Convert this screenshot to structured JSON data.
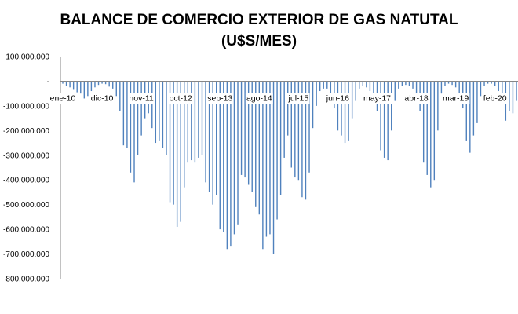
{
  "chart_data": {
    "type": "bar",
    "title": "BALANCE DE COMERCIO EXTERIOR DE GAS NATUTAL",
    "subtitle": "(U$S/MES)",
    "xlabel": "",
    "ylabel": "",
    "ylim": [
      -800000000,
      100000000
    ],
    "grid": false,
    "legend": "none",
    "bar_color": "#4f81bd",
    "y_tick_values": [
      100000000,
      0,
      -100000000,
      -200000000,
      -300000000,
      -400000000,
      -500000000,
      -600000000,
      -700000000,
      -800000000
    ],
    "y_tick_labels": [
      "100.000.000",
      "-",
      "-100.000.000",
      "-200.000.000",
      "-300.000.000",
      "-400.000.000",
      "-500.000.000",
      "-600.000.000",
      "-700.000.000",
      "-800.000.000"
    ],
    "x_tick_labels": [
      {
        "label": "ene-10",
        "index": 0
      },
      {
        "label": "dic-10",
        "index": 11
      },
      {
        "label": "nov-11",
        "index": 22
      },
      {
        "label": "oct-12",
        "index": 33
      },
      {
        "label": "sep-13",
        "index": 44
      },
      {
        "label": "ago-14",
        "index": 55
      },
      {
        "label": "jul-15",
        "index": 66
      },
      {
        "label": "jun-16",
        "index": 77
      },
      {
        "label": "may-17",
        "index": 88
      },
      {
        "label": "abr-18",
        "index": 99
      },
      {
        "label": "mar-19",
        "index": 110
      },
      {
        "label": "feb-20",
        "index": 121
      }
    ],
    "x_start": "ene-10",
    "values": [
      -10000000,
      -20000000,
      -25000000,
      -35000000,
      -45000000,
      -50000000,
      -70000000,
      -60000000,
      -40000000,
      -25000000,
      -15000000,
      -10000000,
      -12000000,
      -22000000,
      -30000000,
      -60000000,
      -120000000,
      -260000000,
      -270000000,
      -370000000,
      -410000000,
      -300000000,
      -220000000,
      -150000000,
      -130000000,
      -190000000,
      -250000000,
      -240000000,
      -270000000,
      -300000000,
      -490000000,
      -500000000,
      -590000000,
      -570000000,
      -430000000,
      -330000000,
      -320000000,
      -330000000,
      -310000000,
      -300000000,
      -410000000,
      -450000000,
      -500000000,
      -460000000,
      -600000000,
      -610000000,
      -680000000,
      -670000000,
      -620000000,
      -580000000,
      -380000000,
      -390000000,
      -420000000,
      -450000000,
      -510000000,
      -540000000,
      -680000000,
      -630000000,
      -620000000,
      -700000000,
      -560000000,
      -460000000,
      -310000000,
      -220000000,
      -350000000,
      -390000000,
      -400000000,
      -470000000,
      -480000000,
      -370000000,
      -190000000,
      -100000000,
      -40000000,
      -30000000,
      -30000000,
      -70000000,
      -110000000,
      -200000000,
      -220000000,
      -250000000,
      -240000000,
      -150000000,
      -80000000,
      -30000000,
      -20000000,
      -25000000,
      -40000000,
      -80000000,
      -120000000,
      -280000000,
      -310000000,
      -320000000,
      -200000000,
      -80000000,
      -30000000,
      -20000000,
      -15000000,
      -20000000,
      -30000000,
      -60000000,
      -120000000,
      -330000000,
      -380000000,
      -430000000,
      -400000000,
      -200000000,
      -50000000,
      -20000000,
      -10000000,
      -15000000,
      -25000000,
      -60000000,
      -110000000,
      -240000000,
      -290000000,
      -220000000,
      -170000000,
      -60000000,
      -20000000,
      -10000000,
      -10000000,
      -20000000,
      -40000000,
      -80000000,
      -160000000,
      -120000000,
      -130000000,
      -80000000
    ]
  }
}
